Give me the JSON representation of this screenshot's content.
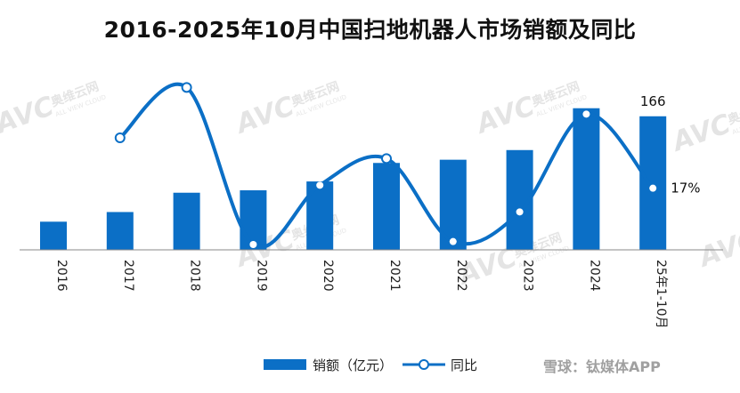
{
  "chart_data": {
    "type": "bar",
    "title": "2016-2025年10月中国扫地机器人市场销额及同比",
    "categories": [
      "2016",
      "2017",
      "2018",
      "2019",
      "2020",
      "2021",
      "2022",
      "2023",
      "2024",
      "25年1-10月"
    ],
    "series": [
      {
        "name": "销额（亿元）",
        "type": "bar",
        "color": "#0b6fc6",
        "values": [
          35,
          47,
          71,
          74,
          85,
          108,
          112,
          124,
          176,
          166
        ]
      },
      {
        "name": "同比",
        "type": "line",
        "color": "#0b6fc6",
        "values": [
          null,
          0.34,
          0.51,
          -0.02,
          0.18,
          0.27,
          -0.01,
          0.09,
          0.42,
          0.17
        ]
      }
    ],
    "data_labels": {
      "last_bar": "166",
      "last_yoy": "17%"
    },
    "legend": {
      "position": "bottom",
      "items": [
        "销额（亿元）",
        "同比"
      ]
    },
    "grid": false,
    "ylim_bar": [
      0,
      200
    ],
    "ylim_line": [
      -0.05,
      0.55
    ]
  },
  "watermark": {
    "brand": "AVC",
    "cn": "奥维云网",
    "en": "ALL VIEW CLOUD",
    "footer": "雪球：钛媒体APP"
  }
}
